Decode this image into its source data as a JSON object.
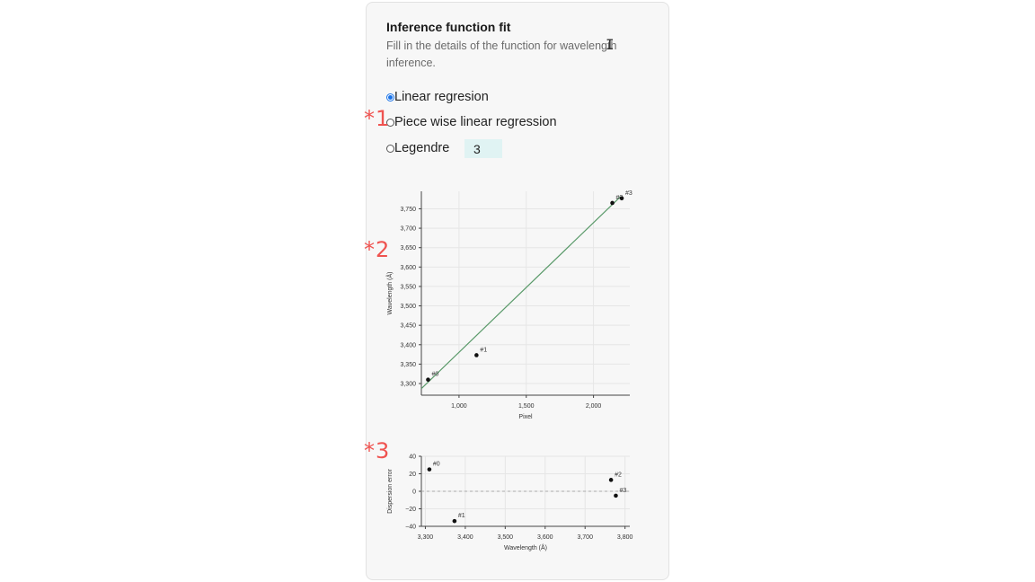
{
  "panel": {
    "title": "Inference function fit",
    "description": "Fill in the details of the function for wavelength inference.",
    "options": [
      {
        "label": "Linear regresion",
        "selected": true
      },
      {
        "label": "Piece wise linear regression",
        "selected": false
      },
      {
        "label": "Legendre",
        "selected": false
      }
    ],
    "legendre_degree": "3"
  },
  "annotations": [
    "*1",
    "*2",
    "*3"
  ],
  "colors": {
    "accent": "#1a73e8",
    "fit_line": "#5a9a6a",
    "marker": "#ef5350",
    "input_bg": "#e0f3f3"
  },
  "chart_data": [
    {
      "type": "scatter",
      "title": "",
      "xlabel": "Pixel",
      "ylabel": "Wavelength (Å)",
      "xlim": [
        720,
        2270
      ],
      "ylim": [
        3270,
        3795
      ],
      "xticks": [
        1000,
        1500,
        2000
      ],
      "xtick_labels": [
        "1,000",
        "1,500",
        "2,000"
      ],
      "yticks": [
        3300,
        3350,
        3400,
        3450,
        3500,
        3550,
        3600,
        3650,
        3700,
        3750
      ],
      "ytick_labels": [
        "3,300",
        "3,350",
        "3,400",
        "3,450",
        "3,500",
        "3,550",
        "3,600",
        "3,650",
        "3,700",
        "3,750"
      ],
      "points": [
        {
          "label": "#0",
          "x": 770,
          "y": 3310
        },
        {
          "label": "#1",
          "x": 1130,
          "y": 3373
        },
        {
          "label": "#2",
          "x": 2140,
          "y": 3765
        },
        {
          "label": "#3",
          "x": 2210,
          "y": 3777
        }
      ],
      "fit_line": {
        "x": [
          720,
          2200
        ],
        "y": [
          3287,
          3781
        ]
      },
      "grid": true
    },
    {
      "type": "scatter",
      "title": "",
      "xlabel": "Wavelength (Å)",
      "ylabel": "Dispersion error",
      "xlim": [
        3290,
        3812
      ],
      "ylim": [
        -40,
        40
      ],
      "xticks": [
        3300,
        3400,
        3500,
        3600,
        3700,
        3800
      ],
      "xtick_labels": [
        "3,300",
        "3,400",
        "3,500",
        "3,600",
        "3,700",
        "3,800"
      ],
      "yticks": [
        -40,
        -20,
        0,
        20,
        40
      ],
      "ytick_labels": [
        "−40",
        "−20",
        "0",
        "20",
        "40"
      ],
      "points": [
        {
          "label": "#0",
          "x": 3310,
          "y": 25
        },
        {
          "label": "#1",
          "x": 3373,
          "y": -34
        },
        {
          "label": "#2",
          "x": 3765,
          "y": 13
        },
        {
          "label": "#3",
          "x": 3777,
          "y": -5
        }
      ],
      "zero_line": true,
      "grid": true
    }
  ]
}
